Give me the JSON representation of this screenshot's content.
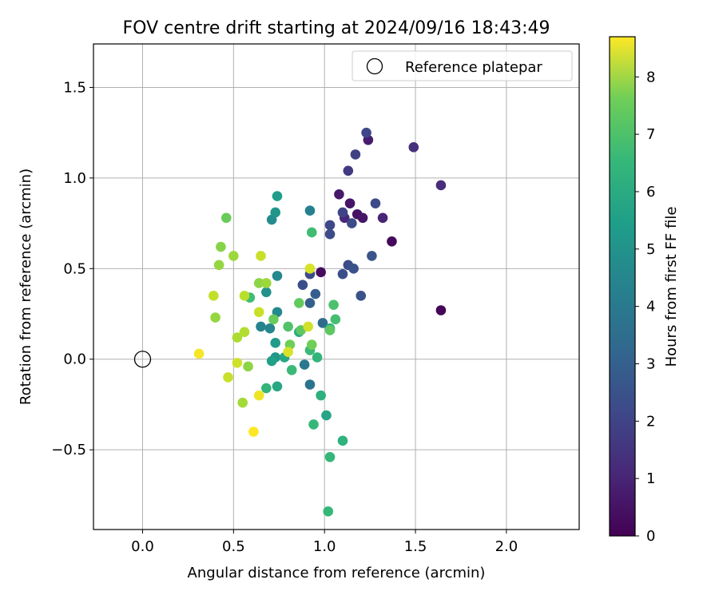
{
  "chart_data": {
    "type": "scatter",
    "title": "FOV centre drift starting at 2024/09/16 18:43:49",
    "xlabel": "Angular distance from reference (arcmin)",
    "ylabel": "Rotation from reference (arcmin)",
    "xlim": [
      -0.27,
      2.4
    ],
    "ylim": [
      -0.94,
      1.74
    ],
    "xticks": [
      0.0,
      0.5,
      1.0,
      1.5,
      2.0
    ],
    "xtick_labels": [
      "0.0",
      "0.5",
      "1.0",
      "1.5",
      "2.0"
    ],
    "yticks": [
      -0.5,
      0.0,
      0.5,
      1.0,
      1.5
    ],
    "ytick_labels": [
      "−0.5",
      "0.0",
      "0.5",
      "1.0",
      "1.5"
    ],
    "grid": true,
    "legend": {
      "placement": "top-right",
      "entries": [
        "Reference platepar"
      ]
    },
    "reference_point": {
      "x": 0.0,
      "y": 0.0,
      "label": "Reference platepar"
    },
    "colorbar": {
      "label": "Hours from first FF file",
      "colormap": "viridis",
      "range": [
        0,
        8.7
      ],
      "ticks": [
        0,
        1,
        2,
        3,
        4,
        5,
        6,
        7,
        8
      ],
      "tick_labels": [
        "0",
        "1",
        "2",
        "3",
        "4",
        "5",
        "6",
        "7",
        "8"
      ]
    },
    "points": [
      {
        "x": 1.64,
        "y": 0.27,
        "h": 0.1
      },
      {
        "x": 1.37,
        "y": 0.65,
        "h": 0.2
      },
      {
        "x": 0.98,
        "y": 0.48,
        "h": 0.3
      },
      {
        "x": 1.18,
        "y": 0.8,
        "h": 0.4
      },
      {
        "x": 1.21,
        "y": 0.78,
        "h": 0.5
      },
      {
        "x": 1.14,
        "y": 0.86,
        "h": 0.5
      },
      {
        "x": 1.08,
        "y": 0.91,
        "h": 0.6
      },
      {
        "x": 1.24,
        "y": 1.21,
        "h": 0.7
      },
      {
        "x": 1.32,
        "y": 0.78,
        "h": 0.9
      },
      {
        "x": 1.11,
        "y": 0.78,
        "h": 1.0
      },
      {
        "x": 1.64,
        "y": 0.96,
        "h": 1.1
      },
      {
        "x": 1.49,
        "y": 1.17,
        "h": 1.2
      },
      {
        "x": 1.13,
        "y": 1.04,
        "h": 1.5
      },
      {
        "x": 1.17,
        "y": 1.13,
        "h": 1.7
      },
      {
        "x": 1.23,
        "y": 1.25,
        "h": 1.9
      },
      {
        "x": 1.1,
        "y": 0.81,
        "h": 1.8
      },
      {
        "x": 1.03,
        "y": 0.74,
        "h": 1.9
      },
      {
        "x": 1.03,
        "y": 0.69,
        "h": 2.0
      },
      {
        "x": 1.15,
        "y": 0.75,
        "h": 2.0
      },
      {
        "x": 1.28,
        "y": 0.86,
        "h": 2.0
      },
      {
        "x": 1.13,
        "y": 0.52,
        "h": 2.0
      },
      {
        "x": 1.16,
        "y": 0.5,
        "h": 2.2
      },
      {
        "x": 1.1,
        "y": 0.47,
        "h": 2.1
      },
      {
        "x": 0.88,
        "y": 0.41,
        "h": 2.1
      },
      {
        "x": 0.92,
        "y": 0.47,
        "h": 2.0
      },
      {
        "x": 1.26,
        "y": 0.57,
        "h": 2.3
      },
      {
        "x": 1.2,
        "y": 0.35,
        "h": 2.2
      },
      {
        "x": 0.95,
        "y": 0.36,
        "h": 2.6
      },
      {
        "x": 0.92,
        "y": 0.31,
        "h": 2.6
      },
      {
        "x": 0.99,
        "y": 0.2,
        "h": 3.0
      },
      {
        "x": 0.92,
        "y": -0.14,
        "h": 3.3
      },
      {
        "x": 0.89,
        "y": -0.03,
        "h": 3.5
      },
      {
        "x": 0.92,
        "y": 0.82,
        "h": 3.8
      },
      {
        "x": 0.65,
        "y": 0.18,
        "h": 3.9
      },
      {
        "x": 0.7,
        "y": 0.17,
        "h": 4.0
      },
      {
        "x": 0.74,
        "y": 0.26,
        "h": 4.1
      },
      {
        "x": 0.74,
        "y": 0.46,
        "h": 4.1
      },
      {
        "x": 0.68,
        "y": 0.37,
        "h": 4.4
      },
      {
        "x": 0.71,
        "y": 0.77,
        "h": 4.2
      },
      {
        "x": 0.73,
        "y": 0.81,
        "h": 4.6
      },
      {
        "x": 0.74,
        "y": 0.9,
        "h": 4.8
      },
      {
        "x": 0.73,
        "y": 0.09,
        "h": 4.7
      },
      {
        "x": 0.73,
        "y": 0.01,
        "h": 4.6
      },
      {
        "x": 0.71,
        "y": -0.01,
        "h": 4.9
      },
      {
        "x": 0.78,
        "y": 0.01,
        "h": 5.2
      },
      {
        "x": 0.74,
        "y": -0.15,
        "h": 5.2
      },
      {
        "x": 0.86,
        "y": 0.15,
        "h": 5.3
      },
      {
        "x": 0.98,
        "y": -0.2,
        "h": 5.5
      },
      {
        "x": 1.01,
        "y": -0.31,
        "h": 5.1
      },
      {
        "x": 1.03,
        "y": 0.17,
        "h": 5.4
      },
      {
        "x": 0.96,
        "y": 0.01,
        "h": 5.7
      },
      {
        "x": 0.92,
        "y": 0.05,
        "h": 5.9
      },
      {
        "x": 0.94,
        "y": -0.36,
        "h": 5.8
      },
      {
        "x": 1.02,
        "y": -0.84,
        "h": 5.8
      },
      {
        "x": 1.03,
        "y": -0.54,
        "h": 5.8
      },
      {
        "x": 1.1,
        "y": -0.45,
        "h": 5.6
      },
      {
        "x": 0.68,
        "y": -0.16,
        "h": 5.7
      },
      {
        "x": 0.82,
        "y": -0.06,
        "h": 5.9
      },
      {
        "x": 0.59,
        "y": 0.34,
        "h": 6.0
      },
      {
        "x": 0.93,
        "y": 0.7,
        "h": 6.0
      },
      {
        "x": 1.06,
        "y": 0.22,
        "h": 6.1
      },
      {
        "x": 1.05,
        "y": 0.3,
        "h": 6.2
      },
      {
        "x": 1.03,
        "y": 0.16,
        "h": 6.5
      },
      {
        "x": 0.8,
        "y": 0.18,
        "h": 6.3
      },
      {
        "x": 0.87,
        "y": 0.16,
        "h": 6.5
      },
      {
        "x": 0.86,
        "y": 0.31,
        "h": 6.6
      },
      {
        "x": 0.46,
        "y": 0.78,
        "h": 6.7
      },
      {
        "x": 0.72,
        "y": 0.22,
        "h": 6.7
      },
      {
        "x": 0.81,
        "y": 0.08,
        "h": 6.8
      },
      {
        "x": 0.43,
        "y": 0.62,
        "h": 7.1
      },
      {
        "x": 0.42,
        "y": 0.52,
        "h": 7.3
      },
      {
        "x": 0.4,
        "y": 0.23,
        "h": 7.3
      },
      {
        "x": 0.5,
        "y": 0.57,
        "h": 7.4
      },
      {
        "x": 0.64,
        "y": 0.42,
        "h": 7.2
      },
      {
        "x": 0.68,
        "y": 0.42,
        "h": 7.4
      },
      {
        "x": 0.58,
        "y": -0.04,
        "h": 7.2
      },
      {
        "x": 0.55,
        "y": -0.24,
        "h": 7.5
      },
      {
        "x": 0.52,
        "y": 0.12,
        "h": 7.6
      },
      {
        "x": 0.56,
        "y": 0.15,
        "h": 7.7
      },
      {
        "x": 0.56,
        "y": 0.35,
        "h": 7.8
      },
      {
        "x": 0.39,
        "y": 0.35,
        "h": 7.9
      },
      {
        "x": 0.93,
        "y": 0.08,
        "h": 6.8
      },
      {
        "x": 0.8,
        "y": 0.04,
        "h": 8.2
      },
      {
        "x": 0.91,
        "y": 0.18,
        "h": 8.1
      },
      {
        "x": 0.92,
        "y": 0.5,
        "h": 8.2
      },
      {
        "x": 0.65,
        "y": 0.57,
        "h": 8.0
      },
      {
        "x": 0.64,
        "y": 0.26,
        "h": 8.0
      },
      {
        "x": 0.52,
        "y": -0.02,
        "h": 8.1
      },
      {
        "x": 0.47,
        "y": -0.1,
        "h": 8.0
      },
      {
        "x": 0.64,
        "y": -0.2,
        "h": 8.5
      },
      {
        "x": 0.31,
        "y": 0.03,
        "h": 8.6
      },
      {
        "x": 0.61,
        "y": -0.4,
        "h": 8.7
      }
    ]
  }
}
